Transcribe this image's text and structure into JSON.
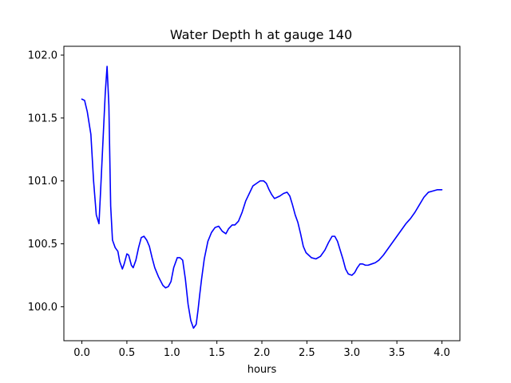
{
  "chart_data": {
    "type": "line",
    "title": "Water Depth h at gauge 140",
    "xlabel": "hours",
    "ylabel": "",
    "xlim": [
      -0.2,
      4.2
    ],
    "ylim": [
      99.73,
      102.07
    ],
    "xticks": [
      0.0,
      0.5,
      1.0,
      1.5,
      2.0,
      2.5,
      3.0,
      3.5,
      4.0
    ],
    "xtick_labels": [
      "0.0",
      "0.5",
      "1.0",
      "1.5",
      "2.0",
      "2.5",
      "3.0",
      "3.5",
      "4.0"
    ],
    "yticks": [
      100.0,
      100.5,
      101.0,
      101.5,
      102.0
    ],
    "ytick_labels": [
      "100.0",
      "100.5",
      "101.0",
      "101.5",
      "102.0"
    ],
    "grid": false,
    "series": [
      {
        "color": "#0000ff",
        "x": [
          0.0,
          0.03,
          0.06,
          0.1,
          0.13,
          0.16,
          0.19,
          0.21,
          0.23,
          0.26,
          0.28,
          0.3,
          0.32,
          0.34,
          0.37,
          0.4,
          0.42,
          0.45,
          0.47,
          0.5,
          0.52,
          0.55,
          0.57,
          0.6,
          0.63,
          0.66,
          0.69,
          0.72,
          0.75,
          0.78,
          0.81,
          0.85,
          0.9,
          0.93,
          0.96,
          0.99,
          1.02,
          1.06,
          1.09,
          1.12,
          1.15,
          1.18,
          1.21,
          1.24,
          1.27,
          1.29,
          1.31,
          1.33,
          1.36,
          1.4,
          1.44,
          1.48,
          1.52,
          1.56,
          1.6,
          1.63,
          1.67,
          1.7,
          1.74,
          1.78,
          1.82,
          1.86,
          1.9,
          1.94,
          1.98,
          2.02,
          2.05,
          2.08,
          2.11,
          2.14,
          2.17,
          2.2,
          2.24,
          2.28,
          2.31,
          2.34,
          2.37,
          2.4,
          2.43,
          2.46,
          2.49,
          2.52,
          2.55,
          2.6,
          2.65,
          2.7,
          2.74,
          2.78,
          2.81,
          2.84,
          2.87,
          2.9,
          2.93,
          2.96,
          3.0,
          3.03,
          3.06,
          3.09,
          3.12,
          3.15,
          3.18,
          3.22,
          3.26,
          3.3,
          3.35,
          3.4,
          3.45,
          3.5,
          3.55,
          3.6,
          3.65,
          3.7,
          3.75,
          3.8,
          3.85,
          3.9,
          3.95,
          4.0
        ],
        "values": [
          101.65,
          101.64,
          101.55,
          101.37,
          101.0,
          100.73,
          100.66,
          100.95,
          101.25,
          101.7,
          101.91,
          101.6,
          100.8,
          100.53,
          100.47,
          100.44,
          100.36,
          100.3,
          100.34,
          100.42,
          100.41,
          100.33,
          100.31,
          100.37,
          100.47,
          100.55,
          100.56,
          100.53,
          100.48,
          100.39,
          100.31,
          100.24,
          100.17,
          100.15,
          100.16,
          100.2,
          100.31,
          100.39,
          100.39,
          100.37,
          100.22,
          100.02,
          99.89,
          99.83,
          99.86,
          99.97,
          100.1,
          100.22,
          100.38,
          100.52,
          100.59,
          100.63,
          100.64,
          100.6,
          100.58,
          100.62,
          100.65,
          100.65,
          100.68,
          100.75,
          100.84,
          100.9,
          100.96,
          100.98,
          101.0,
          101.0,
          100.98,
          100.93,
          100.89,
          100.86,
          100.87,
          100.88,
          100.9,
          100.91,
          100.88,
          100.81,
          100.73,
          100.67,
          100.58,
          100.48,
          100.43,
          100.41,
          100.39,
          100.38,
          100.4,
          100.45,
          100.51,
          100.56,
          100.56,
          100.52,
          100.45,
          100.38,
          100.3,
          100.26,
          100.25,
          100.27,
          100.31,
          100.34,
          100.34,
          100.33,
          100.33,
          100.34,
          100.35,
          100.37,
          100.41,
          100.46,
          100.51,
          100.56,
          100.61,
          100.66,
          100.7,
          100.75,
          100.81,
          100.87,
          100.91,
          100.92,
          100.93,
          100.93
        ]
      }
    ]
  }
}
